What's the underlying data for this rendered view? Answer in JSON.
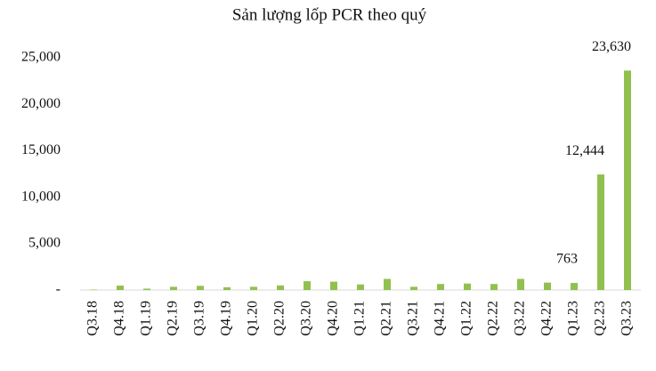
{
  "chart_data": {
    "type": "bar",
    "title": "Sản lượng lốp PCR theo quý",
    "categories": [
      "Q3.18",
      "Q4.18",
      "Q1.19",
      "Q2.19",
      "Q3.19",
      "Q4.19",
      "Q1.20",
      "Q2.20",
      "Q3.20",
      "Q4.20",
      "Q1.21",
      "Q2.21",
      "Q3.21",
      "Q4.21",
      "Q1.22",
      "Q2.22",
      "Q3.22",
      "Q4.22",
      "Q1.23",
      "Q2.23",
      "Q3.23"
    ],
    "values": [
      50,
      480,
      150,
      350,
      450,
      300,
      350,
      500,
      950,
      900,
      600,
      1200,
      350,
      650,
      700,
      650,
      1200,
      800,
      763,
      12444,
      23630
    ],
    "value_labels": [
      null,
      null,
      null,
      null,
      null,
      null,
      null,
      null,
      null,
      null,
      null,
      null,
      null,
      null,
      null,
      null,
      null,
      null,
      "763",
      "12,444",
      "23,630"
    ],
    "color": "#92c04f",
    "ylim": [
      0,
      25000
    ],
    "yticks": [
      {
        "value": 0,
        "label": "-"
      },
      {
        "value": 5000,
        "label": "5,000"
      },
      {
        "value": 10000,
        "label": "10,000"
      },
      {
        "value": 15000,
        "label": "15,000"
      },
      {
        "value": 20000,
        "label": "20,000"
      },
      {
        "value": 25000,
        "label": "25,000"
      }
    ],
    "grid": false
  }
}
